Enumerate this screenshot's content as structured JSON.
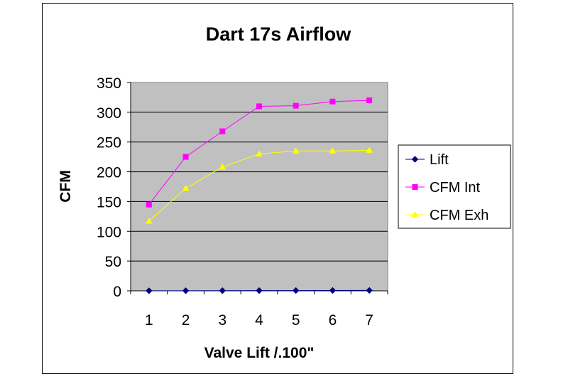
{
  "chart_data": {
    "type": "line",
    "title": "Dart 17s Airflow",
    "xlabel": "Valve Lift /.100\"",
    "ylabel": "CFM",
    "categories": [
      "1",
      "2",
      "3",
      "4",
      "5",
      "6",
      "7"
    ],
    "ylim": [
      0,
      350
    ],
    "yticks": [
      "0",
      "50",
      "100",
      "150",
      "200",
      "250",
      "300",
      "350"
    ],
    "grid": true,
    "legend_position": "right",
    "plot_background": "#c0c0c0",
    "series": [
      {
        "name": "Lift",
        "values": [
          0.1,
          0.2,
          0.3,
          0.4,
          0.5,
          0.6,
          0.7
        ],
        "color": "#000080",
        "marker": "diamond"
      },
      {
        "name": "CFM Int",
        "values": [
          145,
          225,
          268,
          310,
          311,
          318,
          320
        ],
        "color": "#ff00ff",
        "marker": "square"
      },
      {
        "name": "CFM Exh",
        "values": [
          117,
          172,
          208,
          230,
          235,
          235,
          236
        ],
        "color": "#ffff00",
        "marker": "triangle"
      }
    ]
  }
}
